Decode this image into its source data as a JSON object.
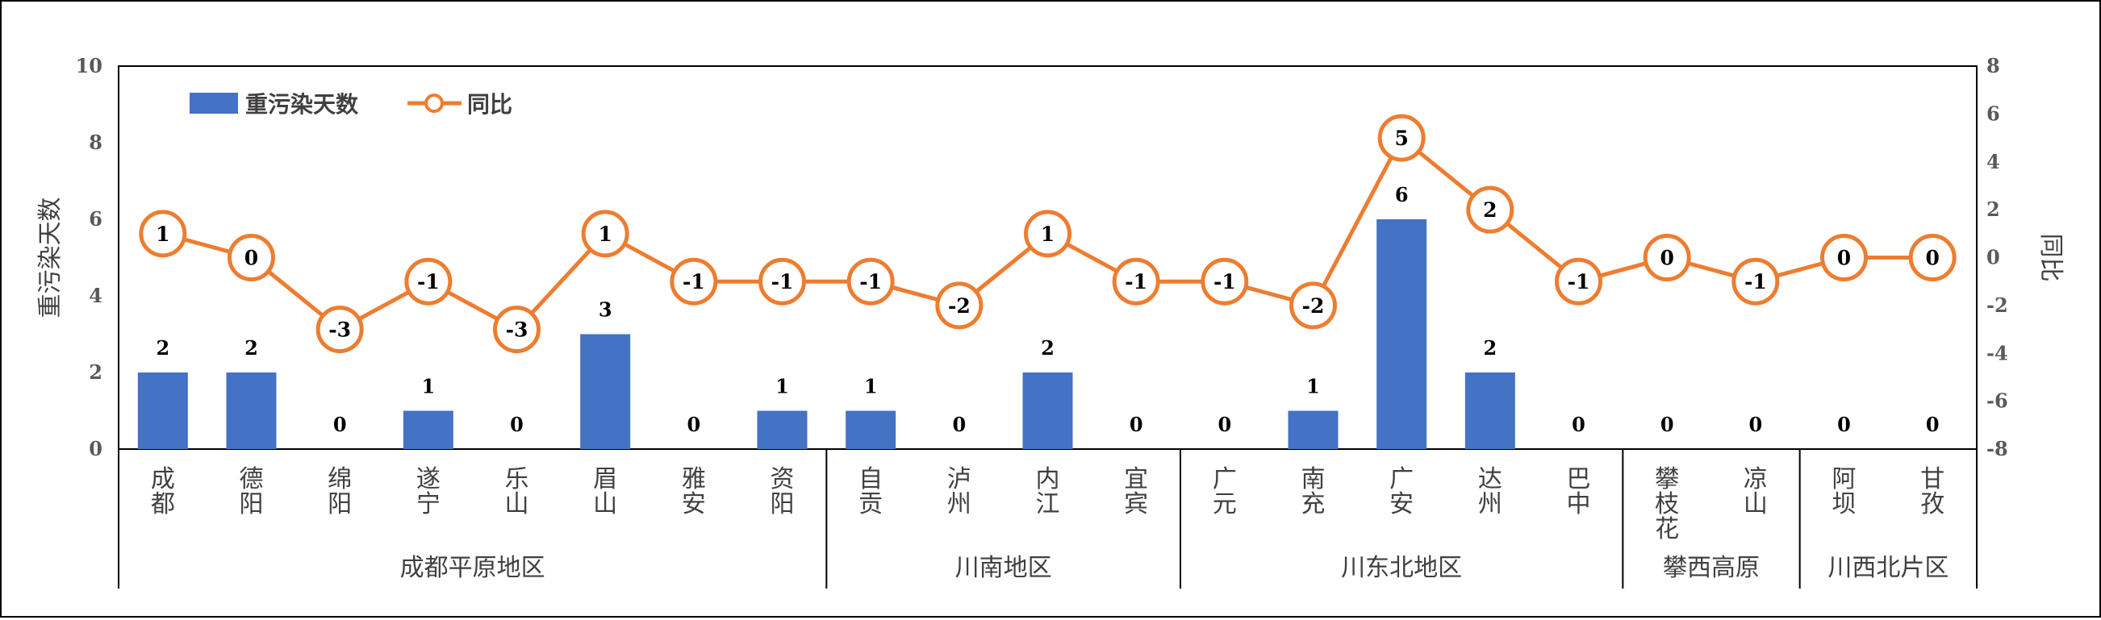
{
  "chart_data": {
    "type": "bar",
    "title": "",
    "categories": [
      "成都",
      "德阳",
      "绵阳",
      "遂宁",
      "乐山",
      "眉山",
      "雅安",
      "资阳",
      "自贡",
      "泸州",
      "内江",
      "宜宾",
      "广元",
      "南充",
      "广安",
      "达州",
      "巴中",
      "攀枝花",
      "凉山",
      "阿坝",
      "甘孜"
    ],
    "category_label_lines": [
      [
        "成",
        "都"
      ],
      [
        "德",
        "阳"
      ],
      [
        "绵",
        "阳"
      ],
      [
        "遂",
        "宁"
      ],
      [
        "乐",
        "山"
      ],
      [
        "眉",
        "山"
      ],
      [
        "雅",
        "安"
      ],
      [
        "资",
        "阳"
      ],
      [
        "自",
        "贡"
      ],
      [
        "泸",
        "州"
      ],
      [
        "内",
        "江"
      ],
      [
        "宜",
        "宾"
      ],
      [
        "广",
        "元"
      ],
      [
        "南",
        "充"
      ],
      [
        "广",
        "安"
      ],
      [
        "达",
        "州"
      ],
      [
        "巴",
        "中"
      ],
      [
        "攀",
        "枝",
        "花"
      ],
      [
        "凉",
        "山"
      ],
      [
        "阿",
        "坝"
      ],
      [
        "甘",
        "孜"
      ]
    ],
    "regions": [
      {
        "name": "成都平原地区",
        "count": 8
      },
      {
        "name": "川南地区",
        "count": 4
      },
      {
        "name": "川东北地区",
        "count": 5
      },
      {
        "name": "攀西高原",
        "count": 2
      },
      {
        "name": "川西北片区",
        "count": 2
      }
    ],
    "series": [
      {
        "name": "重污染天数",
        "type": "bar",
        "axis": "left",
        "color": "#4472C4",
        "values": [
          2,
          2,
          0,
          1,
          0,
          3,
          0,
          1,
          1,
          0,
          2,
          0,
          0,
          1,
          6,
          2,
          0,
          0,
          0,
          0,
          0
        ]
      },
      {
        "name": "同比",
        "type": "line",
        "axis": "right",
        "color": "#ED7D31",
        "values": [
          1,
          0,
          -3,
          -1,
          -3,
          1,
          -1,
          -1,
          -1,
          -2,
          1,
          -1,
          -1,
          -2,
          5,
          2,
          -1,
          0,
          -1,
          0,
          0
        ]
      }
    ],
    "y_left": {
      "label": "重污染天数",
      "ylim": [
        0,
        10
      ],
      "ticks": [
        0,
        2,
        4,
        6,
        8,
        10
      ]
    },
    "y_right": {
      "label": "同比",
      "ylim": [
        -8,
        8
      ],
      "ticks": [
        -8,
        -6,
        -4,
        -2,
        0,
        2,
        4,
        6,
        8
      ]
    },
    "legend": {
      "position": "top-left",
      "entries": [
        "重污染天数",
        "同比"
      ]
    },
    "grid": false
  }
}
